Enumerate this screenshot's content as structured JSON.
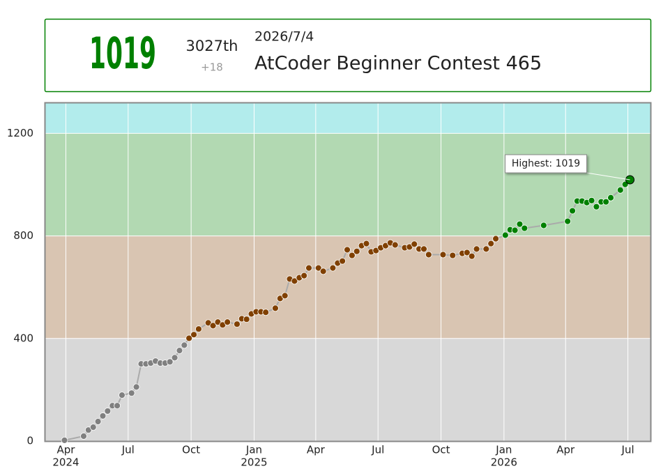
{
  "header": {
    "rating": 1019,
    "rank": "3027th",
    "diff": "+18",
    "date": "2026/7/4",
    "contest": "AtCoder Beginner Contest 465"
  },
  "chart_data": {
    "type": "line",
    "annotation": "Highest: 1019",
    "x": [
      "2024-03-30",
      "2024-04-27",
      "2024-05-04",
      "2024-05-11",
      "2024-05-18",
      "2024-05-25",
      "2024-06-01",
      "2024-06-08",
      "2024-06-15",
      "2024-06-22",
      "2024-07-06",
      "2024-07-13",
      "2024-07-20",
      "2024-07-27",
      "2024-08-03",
      "2024-08-10",
      "2024-08-17",
      "2024-08-24",
      "2024-08-31",
      "2024-09-07",
      "2024-09-14",
      "2024-09-21",
      "2024-09-28",
      "2024-10-05",
      "2024-10-12",
      "2024-10-26",
      "2024-11-02",
      "2024-11-09",
      "2024-11-16",
      "2024-11-23",
      "2024-12-07",
      "2024-12-14",
      "2024-12-21",
      "2024-12-28",
      "2025-01-04",
      "2025-01-11",
      "2025-01-18",
      "2025-02-01",
      "2025-02-08",
      "2025-02-15",
      "2025-02-22",
      "2025-03-01",
      "2025-03-08",
      "2025-03-15",
      "2025-03-22",
      "2025-04-05",
      "2025-04-12",
      "2025-04-26",
      "2025-05-03",
      "2025-05-10",
      "2025-05-17",
      "2025-05-24",
      "2025-05-31",
      "2025-06-07",
      "2025-06-14",
      "2025-06-21",
      "2025-06-28",
      "2025-07-05",
      "2025-07-12",
      "2025-07-19",
      "2025-07-26",
      "2025-08-09",
      "2025-08-16",
      "2025-08-23",
      "2025-08-30",
      "2025-09-06",
      "2025-09-13",
      "2025-10-04",
      "2025-10-18",
      "2025-11-01",
      "2025-11-08",
      "2025-11-15",
      "2025-11-22",
      "2025-12-06",
      "2025-12-13",
      "2025-12-20",
      "2026-01-03",
      "2026-01-10",
      "2026-01-17",
      "2026-01-24",
      "2026-01-31",
      "2026-02-28",
      "2026-04-04",
      "2026-04-11",
      "2026-04-18",
      "2026-04-25",
      "2026-05-02",
      "2026-05-09",
      "2026-05-16",
      "2026-05-23",
      "2026-05-30",
      "2026-06-06",
      "2026-06-20",
      "2026-06-27",
      "2026-07-04"
    ],
    "values": [
      3,
      19,
      43,
      54,
      76,
      98,
      117,
      138,
      138,
      179,
      187,
      211,
      301,
      301,
      304,
      312,
      304,
      304,
      309,
      325,
      353,
      374,
      401,
      415,
      437,
      461,
      450,
      464,
      453,
      464,
      456,
      477,
      475,
      496,
      504,
      504,
      502,
      518,
      556,
      567,
      632,
      624,
      637,
      645,
      675,
      675,
      662,
      675,
      694,
      702,
      746,
      724,
      740,
      762,
      770,
      738,
      743,
      754,
      762,
      773,
      765,
      754,
      757,
      768,
      749,
      749,
      727,
      727,
      724,
      732,
      735,
      721,
      749,
      749,
      770,
      789,
      803,
      824,
      822,
      846,
      830,
      841,
      857,
      898,
      936,
      936,
      930,
      938,
      914,
      933,
      933,
      949,
      979,
      1001,
      1019
    ],
    "line_color": "#aaaaaa",
    "bands": [
      {
        "min": 0,
        "color": "#d8d8d8",
        "point_color": "#808080"
      },
      {
        "min": 400,
        "color": "#d9c5b2",
        "point_color": "#804000"
      },
      {
        "min": 800,
        "color": "#b2d9b2",
        "point_color": "#008000"
      },
      {
        "min": 1200,
        "color": "#b2ecec",
        "point_color": "#00c0c0"
      }
    ],
    "xlim": [
      "2024-03-02",
      "2026-08-03"
    ],
    "ylim": [
      0,
      1318
    ],
    "yticks": [
      0,
      400,
      800,
      1200
    ],
    "xticks": [
      {
        "value": "2024-04-01",
        "label": "Apr",
        "sublabel": "2024"
      },
      {
        "value": "2024-07-01",
        "label": "Jul"
      },
      {
        "value": "2024-10-01",
        "label": "Oct"
      },
      {
        "value": "2025-01-01",
        "label": "Jan",
        "sublabel": "2025"
      },
      {
        "value": "2025-04-01",
        "label": "Apr"
      },
      {
        "value": "2025-07-01",
        "label": "Jul"
      },
      {
        "value": "2025-10-01",
        "label": "Oct"
      },
      {
        "value": "2026-01-01",
        "label": "Jan",
        "sublabel": "2026"
      },
      {
        "value": "2026-04-01",
        "label": "Apr"
      },
      {
        "value": "2026-07-01",
        "label": "Jul"
      }
    ],
    "grid": true
  }
}
